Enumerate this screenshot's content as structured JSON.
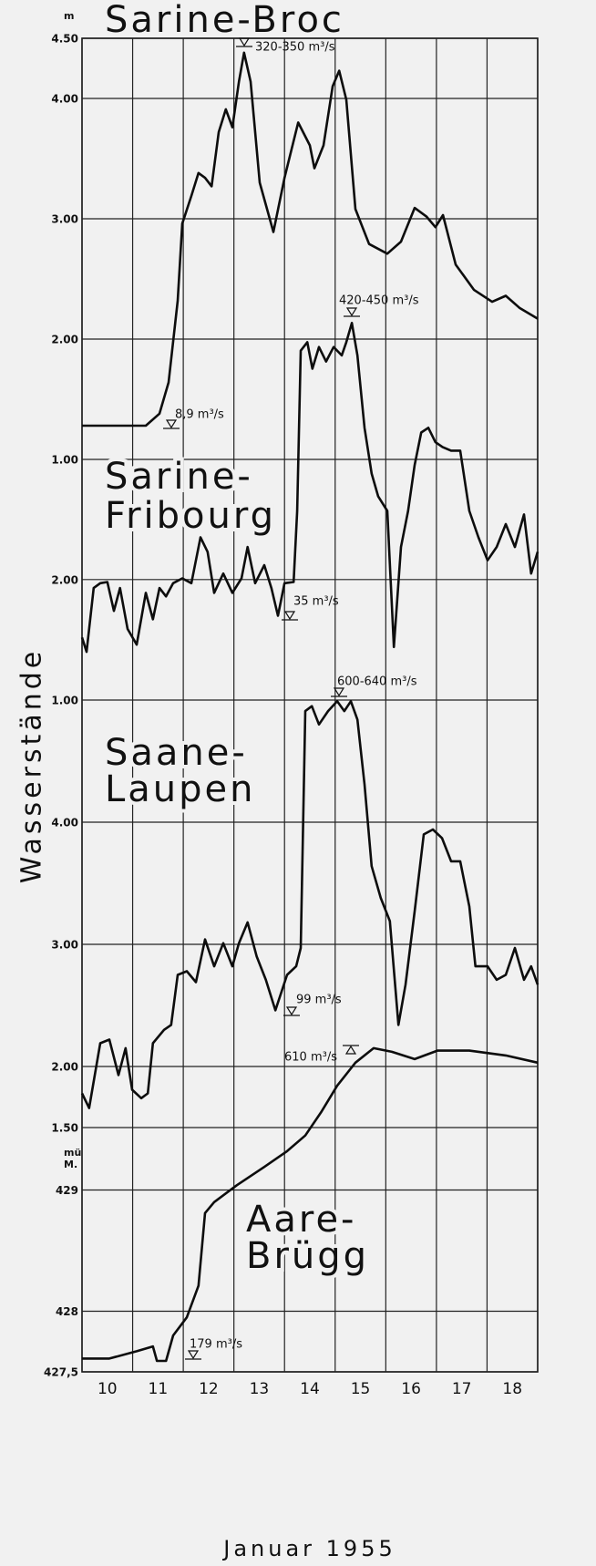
{
  "chart_data": {
    "type": "line",
    "y_label": "Wasserstände",
    "x_label": "Januar 1955",
    "xlim": [
      9.5,
      18.5
    ],
    "xticks": [
      10,
      11,
      12,
      13,
      14,
      15,
      16,
      17,
      18
    ],
    "xgrid": [
      10.5,
      11.5,
      12.5,
      13.5,
      14.5,
      15.5,
      16.5,
      17.5
    ],
    "grid": true,
    "color": "#0d0d0d",
    "panels": [
      {
        "label_lines": [
          "Sarine-Broc"
        ],
        "unit_lines": [
          "m"
        ],
        "ylim": [
          1.0,
          4.5
        ],
        "yticks": [
          {
            "value": 4.5,
            "label": "4.50"
          },
          {
            "value": 4.0,
            "label": "4.00"
          },
          {
            "value": 3.0,
            "label": "3.00"
          },
          {
            "value": 2.0,
            "label": "2.00"
          },
          {
            "value": 1.0,
            "label": "1.00"
          }
        ],
        "x": [
          9.5,
          10.76,
          11.03,
          11.21,
          11.39,
          11.48,
          11.66,
          11.8,
          11.93,
          12.06,
          12.2,
          12.34,
          12.47,
          12.6,
          12.7,
          12.83,
          13.01,
          13.28,
          13.5,
          13.77,
          14.0,
          14.09,
          14.27,
          14.45,
          14.58,
          14.72,
          14.9,
          15.17,
          15.53,
          15.8,
          16.07,
          16.3,
          16.48,
          16.63,
          16.88,
          17.24,
          17.6,
          17.87,
          18.14,
          18.5
        ],
        "values": [
          1.28,
          1.28,
          1.38,
          1.64,
          2.32,
          2.96,
          3.19,
          3.38,
          3.34,
          3.27,
          3.72,
          3.91,
          3.76,
          4.14,
          4.38,
          4.14,
          3.3,
          2.89,
          3.34,
          3.8,
          3.61,
          3.42,
          3.61,
          4.1,
          4.23,
          3.99,
          3.08,
          2.79,
          2.71,
          2.81,
          3.09,
          3.02,
          2.93,
          3.03,
          2.62,
          2.41,
          2.31,
          2.36,
          2.26,
          2.17
        ],
        "annotations": [
          "320-350 m³/s",
          "8,9 m³/s"
        ]
      },
      {
        "label_lines": [
          "Sarine-",
          "Fribourg"
        ],
        "ylim": [
          1.0,
          4.2
        ],
        "yticks": [
          {
            "value": 2.0,
            "label": "2.00"
          },
          {
            "value": 1.0,
            "label": "1.00"
          }
        ],
        "x": [
          9.5,
          9.59,
          9.73,
          9.86,
          10.0,
          10.13,
          10.25,
          10.4,
          10.58,
          10.76,
          10.9,
          11.03,
          11.16,
          11.3,
          11.48,
          11.66,
          11.84,
          11.98,
          12.11,
          12.29,
          12.47,
          12.65,
          12.77,
          12.92,
          13.1,
          13.24,
          13.37,
          13.5,
          13.68,
          13.75,
          13.82,
          13.95,
          14.05,
          14.18,
          14.32,
          14.47,
          14.63,
          14.72,
          14.83,
          14.94,
          15.08,
          15.22,
          15.35,
          15.53,
          15.66,
          15.8,
          15.94,
          16.07,
          16.2,
          16.34,
          16.48,
          16.62,
          16.79,
          16.97,
          17.15,
          17.33,
          17.51,
          17.69,
          17.87,
          18.05,
          18.23,
          18.37,
          18.5
        ],
        "values": [
          1.52,
          1.4,
          1.93,
          1.97,
          1.98,
          1.74,
          1.93,
          1.59,
          1.46,
          1.89,
          1.67,
          1.93,
          1.86,
          1.97,
          2.01,
          1.97,
          2.35,
          2.23,
          1.89,
          2.05,
          1.89,
          2.01,
          2.27,
          1.97,
          2.12,
          1.93,
          1.7,
          1.97,
          1.98,
          2.57,
          3.9,
          3.97,
          3.75,
          3.93,
          3.81,
          3.93,
          3.86,
          3.97,
          4.13,
          3.86,
          3.26,
          2.88,
          2.69,
          2.57,
          1.44,
          2.27,
          2.57,
          2.95,
          3.22,
          3.26,
          3.14,
          3.1,
          3.07,
          3.07,
          2.57,
          2.35,
          2.16,
          2.27,
          2.46,
          2.27,
          2.54,
          2.05,
          2.23
        ],
        "annotations": [
          "420-450 m³/s",
          "35 m³/s"
        ]
      },
      {
        "label_lines": [
          "Saane-",
          "Laupen"
        ],
        "ylim": [
          1.5,
          5.0
        ],
        "yticks": [
          {
            "value": 4.0,
            "label": "4.00"
          },
          {
            "value": 3.0,
            "label": "3.00"
          },
          {
            "value": 2.0,
            "label": "2.00"
          },
          {
            "value": 1.5,
            "label": "1.50"
          }
        ],
        "x": [
          9.5,
          9.64,
          9.86,
          10.04,
          10.22,
          10.36,
          10.49,
          10.67,
          10.8,
          10.9,
          11.12,
          11.26,
          11.39,
          11.57,
          11.75,
          11.93,
          12.11,
          12.29,
          12.47,
          12.6,
          12.77,
          12.95,
          13.13,
          13.32,
          13.55,
          13.73,
          13.82,
          13.91,
          14.04,
          14.18,
          14.36,
          14.54,
          14.68,
          14.81,
          14.94,
          15.08,
          15.22,
          15.4,
          15.58,
          15.75,
          15.89,
          16.07,
          16.25,
          16.43,
          16.61,
          16.79,
          16.97,
          17.15,
          17.27,
          17.51,
          17.69,
          17.87,
          18.05,
          18.23,
          18.37,
          18.5
        ],
        "values": [
          1.78,
          1.66,
          2.19,
          2.22,
          1.93,
          2.15,
          1.81,
          1.74,
          1.78,
          2.19,
          2.3,
          2.34,
          2.75,
          2.78,
          2.69,
          3.04,
          2.82,
          3.01,
          2.82,
          3.01,
          3.18,
          2.9,
          2.71,
          2.46,
          2.75,
          2.82,
          2.97,
          4.91,
          4.95,
          4.8,
          4.91,
          4.99,
          4.91,
          4.99,
          4.84,
          4.31,
          3.64,
          3.38,
          3.19,
          2.34,
          2.67,
          3.27,
          3.9,
          3.94,
          3.87,
          3.68,
          3.68,
          3.31,
          2.82,
          2.82,
          2.71,
          2.75,
          2.97,
          2.71,
          2.82,
          2.67
        ],
        "annotations": [
          "600-640 m³/s",
          "99 m³/s"
        ]
      },
      {
        "label_lines": [
          "Aare-",
          "Brügg"
        ],
        "unit_lines": [
          "mü",
          "M."
        ],
        "ylim": [
          427.5,
          430.5
        ],
        "yticks": [
          429,
          428,
          {
            "value": 427.5,
            "label": "427,5"
          }
        ],
        "x": [
          9.5,
          10.04,
          10.58,
          10.9,
          10.98,
          11.16,
          11.3,
          11.57,
          11.8,
          11.93,
          12.11,
          12.56,
          13.1,
          13.55,
          13.91,
          14.22,
          14.54,
          14.9,
          15.26,
          15.62,
          16.07,
          16.52,
          17.15,
          17.87,
          18.5
        ],
        "values": [
          427.61,
          427.61,
          427.67,
          427.71,
          427.59,
          427.59,
          427.8,
          427.95,
          428.21,
          428.81,
          428.9,
          429.04,
          429.19,
          429.32,
          429.45,
          429.64,
          429.86,
          430.05,
          430.17,
          430.14,
          430.08,
          430.15,
          430.15,
          430.11,
          430.05
        ],
        "annotations": [
          "610 m³/s",
          "179 m³/s"
        ]
      }
    ]
  }
}
